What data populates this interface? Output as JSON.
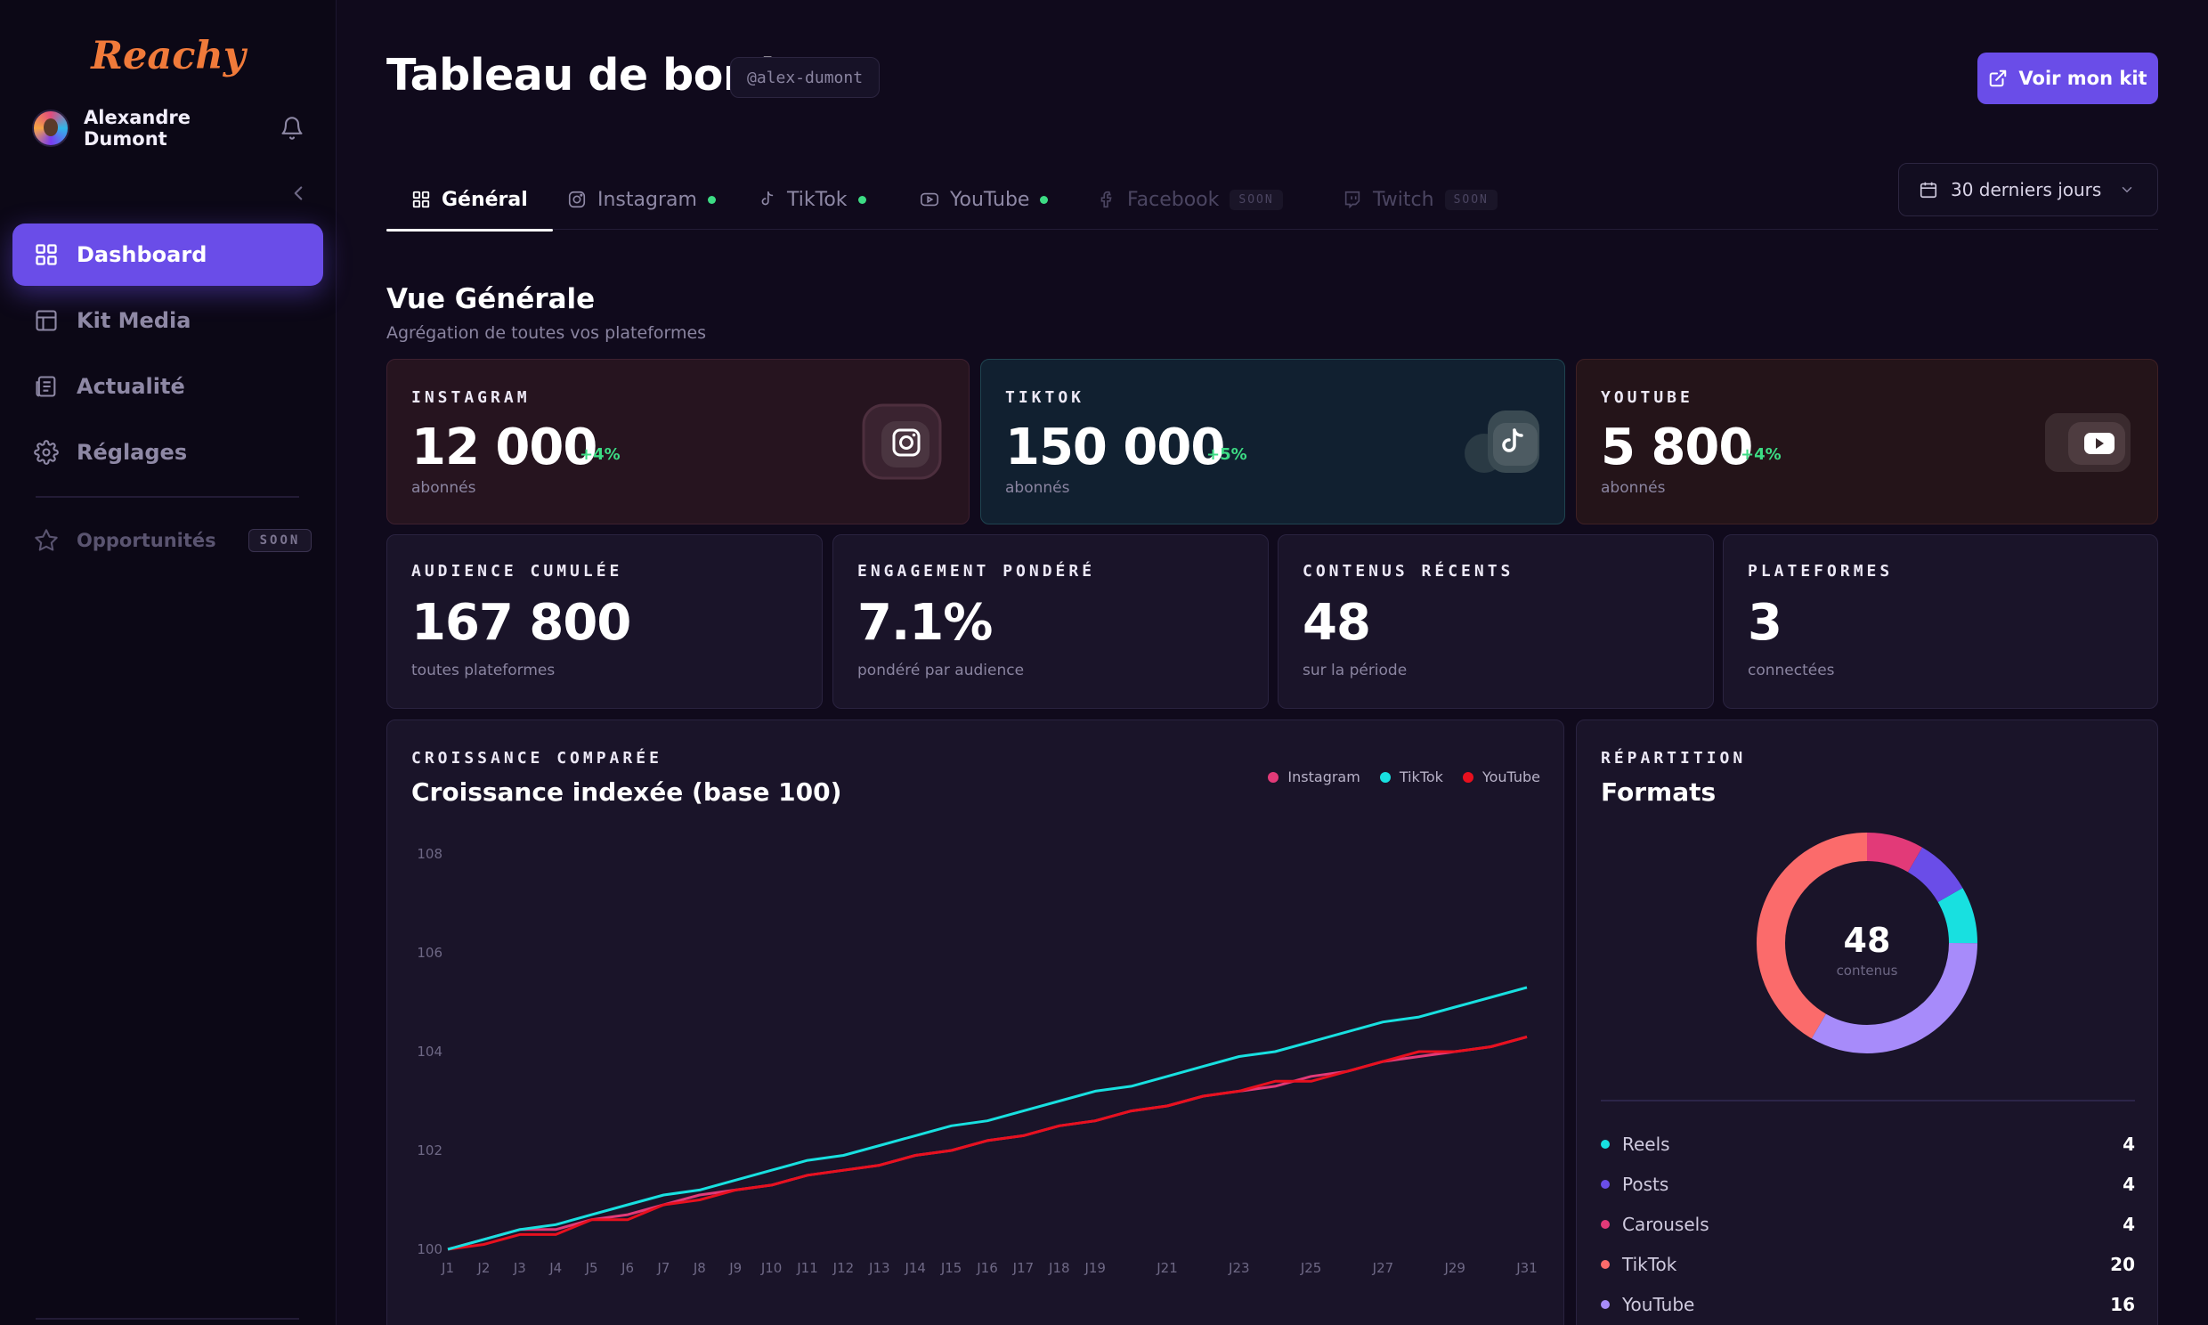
{
  "sidebar": {
    "logo": "Reachy",
    "user_name": "Alexandre Dumont",
    "nav": [
      {
        "label": "Dashboard",
        "icon": "grid-icon",
        "active": true
      },
      {
        "label": "Kit Media",
        "icon": "layout-icon",
        "active": false
      },
      {
        "label": "Actualité",
        "icon": "newspaper-icon",
        "active": false
      },
      {
        "label": "Réglages",
        "icon": "gear-icon",
        "active": false
      }
    ],
    "opportunities": {
      "label": "Opportunités",
      "badge": "SOON",
      "icon": "star-icon"
    }
  },
  "header": {
    "title": "Tableau de bord",
    "handle": "@alex-dumont",
    "kit_button": "Voir mon kit"
  },
  "tabs": [
    {
      "label": "Général",
      "icon": "grid-icon",
      "active": true
    },
    {
      "label": "Instagram",
      "icon": "instagram-icon",
      "status": "connected"
    },
    {
      "label": "TikTok",
      "icon": "tiktok-icon",
      "status": "connected"
    },
    {
      "label": "YouTube",
      "icon": "youtube-icon",
      "status": "connected"
    },
    {
      "label": "Facebook",
      "icon": "facebook-icon",
      "badge": "SOON"
    },
    {
      "label": "Twitch",
      "icon": "twitch-icon",
      "badge": "SOON"
    }
  ],
  "period": "30 derniers jours",
  "overview": {
    "title": "Vue Générale",
    "subtitle": "Agrégation de toutes vos plateformes"
  },
  "platforms": [
    {
      "label": "INSTAGRAM",
      "value": "12 000",
      "delta": "+4%",
      "sub": "abonnés",
      "icon": "instagram-icon"
    },
    {
      "label": "TIKTOK",
      "value": "150 000",
      "delta": "+5%",
      "sub": "abonnés",
      "icon": "tiktok-icon"
    },
    {
      "label": "YOUTUBE",
      "value": "5 800",
      "delta": "+4%",
      "sub": "abonnés",
      "icon": "youtube-icon"
    }
  ],
  "kpis": [
    {
      "label": "AUDIENCE CUMULÉE",
      "value": "167 800",
      "sub": "toutes plateformes"
    },
    {
      "label": "ENGAGEMENT PONDÉRÉ",
      "value": "7.1%",
      "sub": "pondéré par audience"
    },
    {
      "label": "CONTENUS RÉCENTS",
      "value": "48",
      "sub": "sur la période"
    },
    {
      "label": "PLATEFORMES",
      "value": "3",
      "sub": "connectées"
    }
  ],
  "growth": {
    "label": "CROISSANCE COMPARÉE",
    "title": "Croissance indexée (base 100)"
  },
  "formats": {
    "label": "RÉPARTITION",
    "title": "Formats",
    "total": "48",
    "total_label": "contenus",
    "items": [
      {
        "label": "Reels",
        "value": 4,
        "color": "#18e0e0"
      },
      {
        "label": "Posts",
        "value": 4,
        "color": "#6a4de8"
      },
      {
        "label": "Carousels",
        "value": 4,
        "color": "#e23a78"
      },
      {
        "label": "TikTok",
        "value": 20,
        "color": "#fb6b6b"
      },
      {
        "label": "YouTube",
        "value": 16,
        "color": "#a78bfa"
      }
    ]
  },
  "chart_data": {
    "type": "line",
    "title": "Croissance indexée (base 100)",
    "ylim": [
      100,
      108
    ],
    "y_ticks": [
      100,
      102,
      104,
      106,
      108
    ],
    "x_tick_labels": [
      "J1",
      "J2",
      "J3",
      "J4",
      "J5",
      "J6",
      "J7",
      "J8",
      "J9",
      "J10",
      "J11",
      "J12",
      "J13",
      "J14",
      "J15",
      "J16",
      "J17",
      "J18",
      "J19",
      "J21",
      "J23",
      "J25",
      "J27",
      "J29",
      "J31"
    ],
    "x": [
      1,
      2,
      3,
      4,
      5,
      6,
      7,
      8,
      9,
      10,
      11,
      12,
      13,
      14,
      15,
      16,
      17,
      18,
      19,
      20,
      21,
      22,
      23,
      24,
      25,
      26,
      27,
      28,
      29,
      30,
      31
    ],
    "legend_position": "top-right",
    "grid": false,
    "series": [
      {
        "name": "Instagram",
        "color": "#e23a78",
        "values": [
          100,
          100.2,
          100.4,
          100.4,
          100.6,
          100.7,
          100.9,
          101.1,
          101.2,
          101.3,
          101.5,
          101.6,
          101.7,
          101.9,
          102.0,
          102.2,
          102.3,
          102.5,
          102.6,
          102.8,
          102.9,
          103.1,
          103.2,
          103.3,
          103.5,
          103.6,
          103.8,
          103.9,
          104.0,
          104.1,
          104.3
        ],
        "color_on_chart": "same as legend"
      },
      {
        "name": "TikTok",
        "color": "#18e0e0",
        "values": [
          100,
          100.2,
          100.4,
          100.5,
          100.7,
          100.9,
          101.1,
          101.2,
          101.4,
          101.6,
          101.8,
          101.9,
          102.1,
          102.3,
          102.5,
          102.6,
          102.8,
          103.0,
          103.2,
          103.3,
          103.5,
          103.7,
          103.9,
          104.0,
          104.2,
          104.4,
          104.6,
          104.7,
          104.9,
          105.1,
          105.3
        ]
      },
      {
        "name": "YouTube",
        "color": "#e8101e",
        "values": [
          100,
          100.1,
          100.3,
          100.3,
          100.6,
          100.6,
          100.9,
          101.0,
          101.2,
          101.3,
          101.5,
          101.6,
          101.7,
          101.9,
          102.0,
          102.2,
          102.3,
          102.5,
          102.6,
          102.8,
          102.9,
          103.1,
          103.2,
          103.4,
          103.4,
          103.6,
          103.8,
          104.0,
          104.0,
          104.1,
          104.3
        ]
      }
    ]
  },
  "colors": {
    "accent": "#6a4de8",
    "logo": "#f07a3a",
    "positive": "#3ddc84",
    "background": "#100a1c"
  }
}
